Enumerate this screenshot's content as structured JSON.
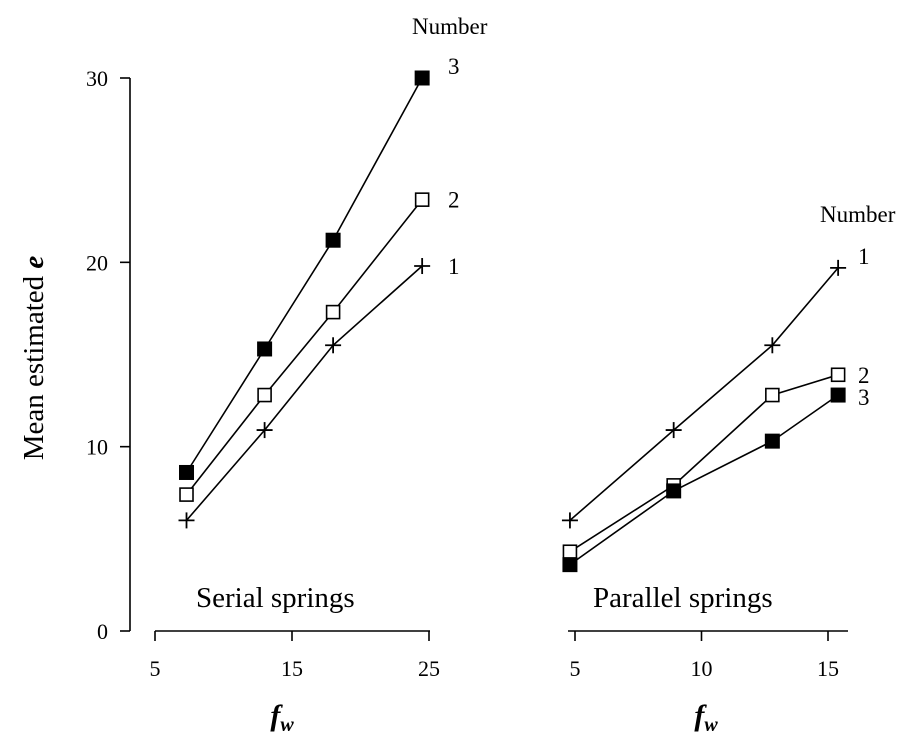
{
  "chart_data": [
    {
      "type": "line",
      "panel": "serial",
      "title": "Serial springs",
      "xlabel": "f",
      "xlabel_sub": "w",
      "ylabel": "Mean estimated e",
      "ylabel_prefix": "Mean estimated ",
      "ylabel_var": "e",
      "xlim": [
        5,
        25
      ],
      "ylim": [
        0,
        30
      ],
      "x_ticks": [
        5,
        15,
        25
      ],
      "y_ticks": [
        0,
        10,
        20,
        30
      ],
      "legend_title": "Number",
      "series": [
        {
          "name": "1",
          "marker": "plus",
          "x": [
            7.3,
            13.0,
            18.0,
            24.5
          ],
          "y": [
            6.0,
            10.9,
            15.5,
            19.8
          ]
        },
        {
          "name": "2",
          "marker": "open-square",
          "x": [
            7.3,
            13.0,
            18.0,
            24.5
          ],
          "y": [
            7.4,
            12.8,
            17.3,
            23.4
          ]
        },
        {
          "name": "3",
          "marker": "filled-square",
          "x": [
            7.3,
            13.0,
            18.0,
            24.5
          ],
          "y": [
            8.6,
            15.3,
            21.2,
            30.0
          ]
        }
      ]
    },
    {
      "type": "line",
      "panel": "parallel",
      "title": "Parallel springs",
      "xlabel": "f",
      "xlabel_sub": "w",
      "xlim": [
        3.5,
        16
      ],
      "ylim": [
        0,
        30
      ],
      "x_ticks": [
        5,
        10,
        15
      ],
      "legend_title": "Number",
      "series": [
        {
          "name": "1",
          "marker": "plus",
          "x": [
            4.8,
            8.9,
            12.8,
            15.4
          ],
          "y": [
            6.0,
            10.9,
            15.5,
            19.7
          ]
        },
        {
          "name": "2",
          "marker": "open-square",
          "x": [
            4.8,
            8.9,
            12.8,
            15.4
          ],
          "y": [
            4.3,
            7.9,
            12.8,
            13.9
          ]
        },
        {
          "name": "3",
          "marker": "filled-square",
          "x": [
            4.8,
            8.9,
            12.8,
            15.4
          ],
          "y": [
            3.6,
            7.6,
            10.3,
            12.8
          ]
        }
      ]
    }
  ]
}
